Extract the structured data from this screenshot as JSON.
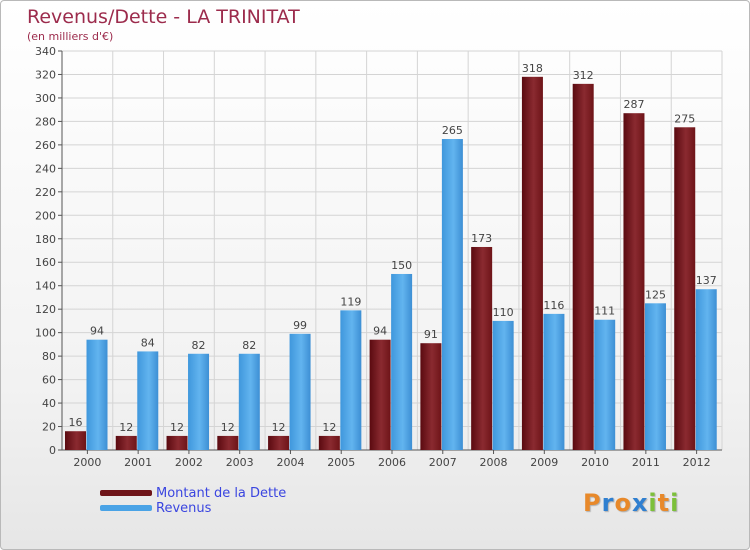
{
  "title": "Revenus/Dette - LA TRINITAT",
  "subtitle": "(en milliers d'€)",
  "chart_data": {
    "type": "bar",
    "title": "Revenus/Dette - LA TRINITAT",
    "subtitle": "(en milliers d'€)",
    "categories": [
      "2000",
      "2001",
      "2002",
      "2003",
      "2004",
      "2005",
      "2006",
      "2007",
      "2008",
      "2009",
      "2010",
      "2011",
      "2012"
    ],
    "series": [
      {
        "name": "Montant de la Dette",
        "color": "#7a1a1e",
        "values": [
          16,
          12,
          12,
          12,
          12,
          12,
          94,
          91,
          173,
          318,
          312,
          287,
          275
        ]
      },
      {
        "name": "Revenus",
        "color": "#4aa3e6",
        "values": [
          94,
          84,
          82,
          82,
          99,
          119,
          150,
          265,
          110,
          116,
          111,
          125,
          137
        ]
      }
    ],
    "ylim": [
      0,
      340
    ],
    "yticks": [
      0,
      20,
      40,
      60,
      80,
      100,
      120,
      140,
      160,
      180,
      200,
      220,
      240,
      260,
      280,
      300,
      320,
      340
    ],
    "grid": true,
    "legend_position": "bottom-left"
  },
  "legend": [
    {
      "label": "Montant de la Dette",
      "color": "#7a1a1e"
    },
    {
      "label": "Revenus",
      "color": "#4aa3e6"
    }
  ],
  "logo": {
    "letters": [
      "P",
      "r",
      "o",
      "x",
      "i",
      "t",
      "i"
    ],
    "colors": [
      "#e8892a",
      "#2f7fd0",
      "#e8892a",
      "#2f7fd0",
      "#7cc03a",
      "#e8892a",
      "#7cc03a"
    ]
  }
}
